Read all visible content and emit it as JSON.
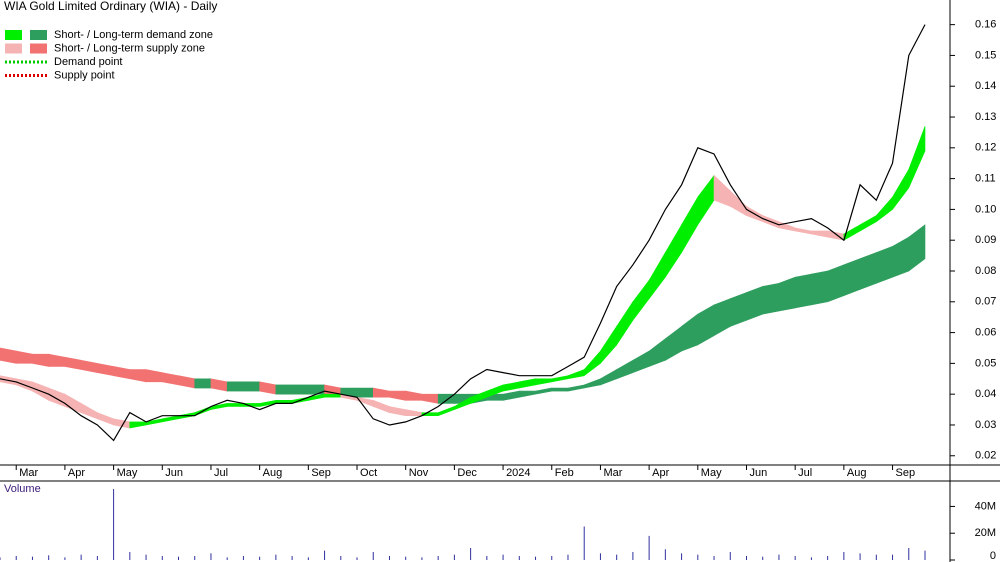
{
  "chart_data": {
    "type": "line",
    "title": "WIA Gold Limited Ordinary (WIA) - Daily",
    "categories": [
      null,
      "Mar",
      null,
      null,
      "Apr",
      null,
      null,
      "May",
      null,
      null,
      "Jun",
      null,
      null,
      "Jul",
      null,
      null,
      "Aug",
      null,
      null,
      "Sep",
      null,
      null,
      "Oct",
      null,
      null,
      "Nov",
      null,
      null,
      "Dec",
      null,
      null,
      "2024",
      null,
      null,
      "Feb",
      null,
      null,
      "Mar",
      null,
      null,
      "Apr",
      null,
      null,
      "May",
      null,
      null,
      "Jun",
      null,
      null,
      "Jul",
      null,
      null,
      "Aug",
      null,
      null,
      "Sep",
      null,
      null
    ],
    "close": {
      "color": "#000000",
      "values": [
        0.045,
        0.044,
        0.042,
        0.04,
        0.037,
        0.033,
        0.03,
        0.025,
        0.034,
        0.031,
        0.033,
        0.033,
        0.033,
        0.036,
        0.038,
        0.037,
        0.035,
        0.037,
        0.037,
        0.039,
        0.041,
        0.04,
        0.039,
        0.032,
        0.03,
        0.031,
        0.033,
        0.036,
        0.04,
        0.045,
        0.048,
        0.047,
        0.046,
        0.046,
        0.046,
        0.049,
        0.052,
        0.063,
        0.075,
        0.082,
        0.09,
        0.1,
        0.108,
        0.12,
        0.118,
        0.108,
        0.1,
        0.097,
        0.095,
        0.096,
        0.097,
        0.094,
        0.09,
        0.108,
        0.103,
        0.115,
        0.15,
        0.16
      ]
    },
    "zones": [
      {
        "demand_color": "#00ee00",
        "supply_color": "#f6b3b3",
        "upper": [
          0.046,
          0.045,
          0.044,
          0.042,
          0.04,
          0.037,
          0.034,
          0.032,
          0.031,
          0.031,
          0.032,
          0.033,
          0.034,
          0.036,
          0.037,
          0.037,
          0.037,
          0.038,
          0.038,
          0.039,
          0.04,
          0.04,
          0.039,
          0.038,
          0.036,
          0.035,
          0.034,
          0.034,
          0.036,
          0.039,
          0.041,
          0.043,
          0.044,
          0.045,
          0.045,
          0.046,
          0.048,
          0.054,
          0.062,
          0.07,
          0.077,
          0.086,
          0.095,
          0.104,
          0.111,
          0.106,
          0.101,
          0.098,
          0.096,
          0.094,
          0.093,
          0.093,
          0.092,
          0.095,
          0.098,
          0.104,
          0.113,
          0.127
        ],
        "lower": [
          0.044,
          0.043,
          0.041,
          0.038,
          0.036,
          0.034,
          0.032,
          0.03,
          0.029,
          0.03,
          0.031,
          0.032,
          0.033,
          0.035,
          0.036,
          0.036,
          0.036,
          0.037,
          0.037,
          0.038,
          0.039,
          0.039,
          0.038,
          0.036,
          0.034,
          0.033,
          0.033,
          0.033,
          0.035,
          0.037,
          0.039,
          0.041,
          0.042,
          0.043,
          0.044,
          0.045,
          0.046,
          0.05,
          0.056,
          0.064,
          0.071,
          0.078,
          0.086,
          0.095,
          0.103,
          0.101,
          0.098,
          0.096,
          0.094,
          0.093,
          0.092,
          0.091,
          0.09,
          0.093,
          0.096,
          0.1,
          0.107,
          0.119
        ]
      },
      {
        "demand_color": "#2e9e5e",
        "supply_color": "#f27272",
        "upper": [
          0.055,
          0.054,
          0.053,
          0.053,
          0.052,
          0.051,
          0.05,
          0.049,
          0.048,
          0.048,
          0.047,
          0.046,
          0.045,
          0.045,
          0.044,
          0.044,
          0.044,
          0.043,
          0.043,
          0.043,
          0.043,
          0.042,
          0.042,
          0.042,
          0.041,
          0.041,
          0.04,
          0.04,
          0.04,
          0.04,
          0.04,
          0.04,
          0.041,
          0.041,
          0.042,
          0.042,
          0.043,
          0.045,
          0.048,
          0.051,
          0.054,
          0.058,
          0.062,
          0.066,
          0.069,
          0.071,
          0.073,
          0.075,
          0.076,
          0.078,
          0.079,
          0.08,
          0.082,
          0.084,
          0.086,
          0.088,
          0.091,
          0.095
        ],
        "lower": [
          0.051,
          0.05,
          0.05,
          0.049,
          0.049,
          0.048,
          0.047,
          0.046,
          0.045,
          0.044,
          0.044,
          0.043,
          0.042,
          0.042,
          0.041,
          0.041,
          0.041,
          0.04,
          0.04,
          0.04,
          0.04,
          0.039,
          0.039,
          0.039,
          0.039,
          0.038,
          0.038,
          0.037,
          0.037,
          0.037,
          0.038,
          0.038,
          0.039,
          0.04,
          0.041,
          0.041,
          0.042,
          0.043,
          0.045,
          0.047,
          0.049,
          0.051,
          0.054,
          0.056,
          0.059,
          0.062,
          0.064,
          0.066,
          0.067,
          0.068,
          0.069,
          0.07,
          0.072,
          0.074,
          0.076,
          0.078,
          0.08,
          0.084
        ]
      }
    ],
    "ylim": [
      0.017,
      0.168
    ],
    "yticks": [
      0.02,
      0.03,
      0.04,
      0.05,
      0.06,
      0.07,
      0.08,
      0.09,
      {
        "value": 0.1,
        "label": "0.10"
      },
      0.11,
      0.12,
      0.13,
      0.14,
      0.15,
      0.16
    ],
    "legend": [
      {
        "label": "Short- / Long-term demand zone",
        "colors": [
          "#00ee00",
          "#2e9e5e"
        ]
      },
      {
        "label": "Short- / Long-term supply zone",
        "colors": [
          "#f6b3b3",
          "#f27272"
        ]
      },
      {
        "label": "Demand point",
        "colors": [
          "#00cc00"
        ]
      },
      {
        "label": "Supply point",
        "colors": [
          "#dd0000"
        ]
      }
    ],
    "volume": {
      "label": "Volume",
      "color": "#3030a0",
      "values": [
        2000000,
        3000000,
        2500000,
        3500000,
        2000000,
        4000000,
        3000000,
        53000000,
        6000000,
        4000000,
        3000000,
        2500000,
        3000000,
        5000000,
        2000000,
        3000000,
        2500000,
        4000000,
        3000000,
        2000000,
        7000000,
        3000000,
        2000000,
        6000000,
        3000000,
        2500000,
        2000000,
        3000000,
        4000000,
        9000000,
        3000000,
        4000000,
        3000000,
        2500000,
        3000000,
        4000000,
        25000000,
        5000000,
        4000000,
        6000000,
        18000000,
        8000000,
        5000000,
        4000000,
        3000000,
        6000000,
        3000000,
        2500000,
        4000000,
        3000000,
        2000000,
        3000000,
        6000000,
        5000000,
        4000000,
        4000000,
        9000000,
        7000000
      ],
      "ylim": [
        0,
        56000000
      ],
      "yticks": [
        0,
        {
          "value": 20000000,
          "label": "20M"
        },
        {
          "value": 40000000,
          "label": "40M"
        }
      ]
    }
  }
}
